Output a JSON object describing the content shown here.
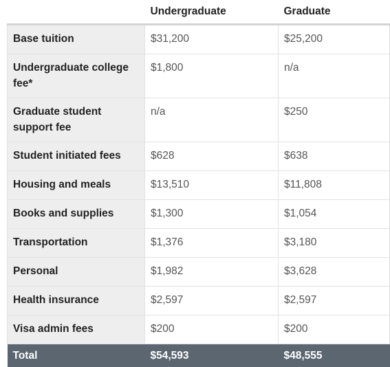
{
  "table": {
    "headers": {
      "label": "",
      "undergraduate": "Undergraduate",
      "graduate": "Graduate"
    },
    "rows": [
      {
        "label": "Base tuition",
        "undergraduate": "$31,200",
        "graduate": "$25,200"
      },
      {
        "label": "Undergraduate college fee*",
        "undergraduate": "$1,800",
        "graduate": "n/a"
      },
      {
        "label": "Graduate student support fee",
        "undergraduate": "n/a",
        "graduate": "$250"
      },
      {
        "label": "Student initiated fees",
        "undergraduate": "$628",
        "graduate": "$638"
      },
      {
        "label": "Housing and meals",
        "undergraduate": "$13,510",
        "graduate": "$11,808"
      },
      {
        "label": "Books and supplies",
        "undergraduate": "$1,300",
        "graduate": "$1,054"
      },
      {
        "label": "Transportation",
        "undergraduate": "$1,376",
        "graduate": "$3,180"
      },
      {
        "label": "Personal",
        "undergraduate": "$1,982",
        "graduate": "$3,628"
      },
      {
        "label": "Health insurance",
        "undergraduate": "$2,597",
        "graduate": "$2,597"
      },
      {
        "label": "Visa admin fees",
        "undergraduate": "$200",
        "graduate": "$200"
      }
    ],
    "total": {
      "label": "Total",
      "undergraduate": "$54,593",
      "graduate": "$48,555"
    }
  },
  "colors": {
    "label_bg": "#eeeeee",
    "total_bg": "#5b6670",
    "value_text": "#555555"
  }
}
